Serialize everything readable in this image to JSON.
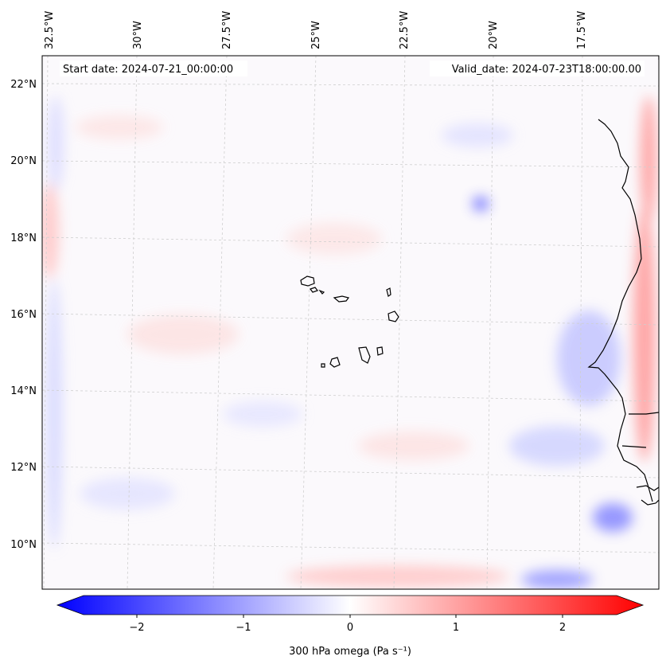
{
  "header": {
    "start_date": "Start date: 2024-07-21_00:00:00",
    "valid_date": "Valid_date: 2024-07-23T18:00:00.00"
  },
  "map": {
    "longitude_labels": [
      "32.5°W",
      "30°W",
      "27.5°W",
      "25°W",
      "22.5°W",
      "20°W",
      "17.5°W"
    ],
    "latitude_labels": [
      "22°N",
      "20°N",
      "18°N",
      "16°N",
      "14°N",
      "12°N",
      "10°N"
    ],
    "region": "Cape Verde and West African coast",
    "gridlines": true,
    "coastline_color": "#000000"
  },
  "colorbar": {
    "label": "300 hPa omega (Pa s⁻¹)",
    "ticks": [
      "−2",
      "−1",
      "0",
      "1",
      "2"
    ],
    "range": [
      -2.75,
      2.75
    ],
    "extend": "both",
    "colormap": [
      "#0000ff",
      "#ffffff",
      "#ff0000"
    ]
  }
}
